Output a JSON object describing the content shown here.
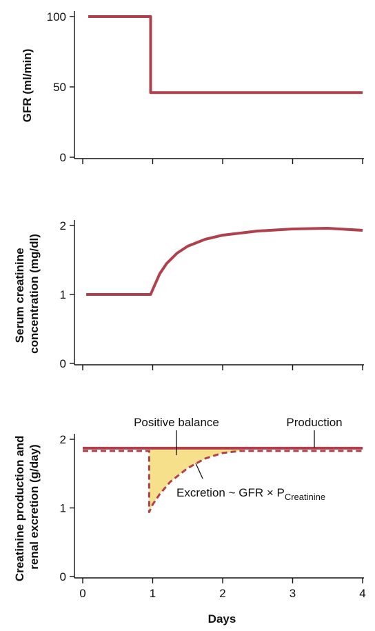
{
  "colors": {
    "line": "#b0404c",
    "fill": "#f7e08c",
    "axis": "#111111"
  },
  "chart_data": [
    {
      "type": "line",
      "ylabel": "GFR (ml/min)",
      "xlim": [
        0,
        4
      ],
      "ylim": [
        0,
        100
      ],
      "yticks": [
        0,
        50,
        100
      ],
      "x_ticks": [
        0,
        1,
        2,
        3,
        4
      ],
      "x_tick_labels_shown": false,
      "series": [
        {
          "x": [
            0.08,
            0.97,
            0.97,
            4.0
          ],
          "y": [
            100,
            100,
            46,
            46
          ],
          "style": "solid"
        }
      ]
    },
    {
      "type": "line",
      "ylabel_lines": [
        "Serum creatinine",
        "concentration (mg/dl)"
      ],
      "xlim": [
        0,
        4
      ],
      "ylim": [
        0,
        2
      ],
      "yticks": [
        0,
        1,
        2
      ],
      "x_ticks": [
        0,
        1,
        2,
        3,
        4
      ],
      "x_tick_labels_shown": false,
      "series": [
        {
          "x": [
            0.05,
            0.97,
            1.0,
            1.1,
            1.2,
            1.35,
            1.5,
            1.75,
            2.0,
            2.5,
            3.0,
            3.5,
            4.0
          ],
          "y": [
            1.0,
            1.0,
            1.07,
            1.3,
            1.45,
            1.6,
            1.7,
            1.8,
            1.86,
            1.92,
            1.95,
            1.96,
            1.93
          ],
          "style": "solid"
        }
      ]
    },
    {
      "type": "area",
      "ylabel_lines": [
        "Creatinine production and",
        "renal excretion (g/day)"
      ],
      "xlabel": "Days",
      "xlim": [
        0,
        4
      ],
      "ylim": [
        0,
        2
      ],
      "yticks": [
        0,
        1,
        2
      ],
      "x_ticks": [
        0,
        1,
        2,
        3,
        4
      ],
      "x_tick_labels": [
        "0",
        "1",
        "2",
        "3",
        "4"
      ],
      "series": [
        {
          "name": "Production",
          "x": [
            0.0,
            4.0
          ],
          "y": [
            1.87,
            1.87
          ],
          "style": "solid"
        },
        {
          "name": "Excretion",
          "x": [
            0.0,
            0.95,
            0.95,
            1.0,
            1.1,
            1.25,
            1.5,
            1.75,
            2.0,
            2.25,
            4.0
          ],
          "y": [
            1.83,
            1.83,
            0.94,
            1.05,
            1.2,
            1.38,
            1.58,
            1.72,
            1.8,
            1.83,
            1.83
          ],
          "style": "dashed"
        }
      ],
      "annotations": {
        "positive_balance": "Positive balance",
        "production": "Production",
        "excretion_main": "Excretion ~ GFR × P",
        "excretion_sub": "Creatinine"
      }
    }
  ]
}
